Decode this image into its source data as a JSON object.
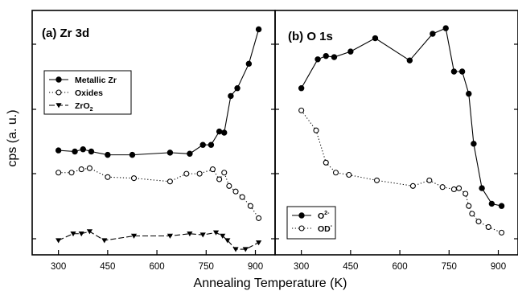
{
  "chart_data": [
    {
      "type": "line",
      "panel": "a",
      "title": "(a) Zr 3d",
      "xlim": [
        220,
        960
      ],
      "x_ticks": [
        300,
        450,
        600,
        750,
        900
      ],
      "legend_position": "upper-left",
      "series": [
        {
          "name": "Metallic Zr",
          "style": "solid",
          "marker": "filled-circle",
          "x": [
            300,
            350,
            375,
            400,
            450,
            525,
            640,
            700,
            740,
            765,
            790,
            805,
            825,
            845,
            880,
            910
          ],
          "y": [
            44,
            43,
            45,
            43,
            40,
            40,
            42,
            41,
            49,
            49,
            61,
            60,
            93,
            100,
            122,
            153
          ]
        },
        {
          "name": "Oxides",
          "style": "dotted",
          "marker": "open-circle",
          "x": [
            300,
            340,
            370,
            395,
            450,
            530,
            640,
            690,
            730,
            770,
            790,
            805,
            820,
            840,
            860,
            885,
            910
          ],
          "y": [
            24,
            24,
            27,
            28,
            20,
            19,
            16,
            23,
            23,
            27,
            18,
            24,
            12,
            7,
            2,
            -6,
            -17
          ]
        },
        {
          "name": "ZrO2",
          "style": "dashed",
          "marker": "filled-triangle-down",
          "x": [
            300,
            345,
            370,
            395,
            440,
            530,
            640,
            700,
            740,
            780,
            800,
            815,
            840,
            870,
            910
          ],
          "y": [
            -37,
            -31,
            -31,
            -29,
            -37,
            -33,
            -33,
            -31,
            -32,
            -30,
            -33,
            -37,
            -45,
            -45,
            -39
          ]
        }
      ],
      "legend_labels": [
        {
          "text": "Metallic Zr",
          "sub": ""
        },
        {
          "text": "Oxides",
          "sub": ""
        },
        {
          "text": "ZrO",
          "sub": "2"
        }
      ]
    },
    {
      "type": "line",
      "panel": "b",
      "title": "(b) O 1s",
      "xlim": [
        220,
        960
      ],
      "x_ticks": [
        300,
        450,
        600,
        750,
        900
      ],
      "legend_position": "lower-left",
      "series": [
        {
          "name": "O2-",
          "style": "solid",
          "marker": "filled-circle",
          "x": [
            300,
            350,
            375,
            400,
            450,
            525,
            630,
            700,
            740,
            765,
            790,
            810,
            825,
            850,
            880,
            910
          ],
          "y": [
            100,
            126,
            129,
            128,
            133,
            145,
            125,
            149,
            154,
            115,
            115,
            95,
            50,
            10,
            -4,
            -6
          ],
          "y_screen_note": "values in same arbitrary cps scale"
        },
        {
          "name": "OD-",
          "style": "dotted",
          "marker": "open-circle",
          "x": [
            300,
            345,
            375,
            405,
            445,
            530,
            640,
            690,
            730,
            765,
            780,
            800,
            810,
            820,
            840,
            870,
            910
          ],
          "y": [
            80,
            62,
            33,
            24,
            22,
            17,
            12,
            17,
            11,
            9,
            10,
            5,
            -6,
            -13,
            -20,
            -25,
            -30
          ]
        }
      ],
      "legend_labels": [
        {
          "text": "O",
          "sup": "2-"
        },
        {
          "text": "OD",
          "sup": "-"
        }
      ]
    }
  ],
  "shared": {
    "ylabel": "cps (a. u.)",
    "xlabel": "Annealing Temperature (K)",
    "ylim": [
      -50,
      170
    ]
  }
}
